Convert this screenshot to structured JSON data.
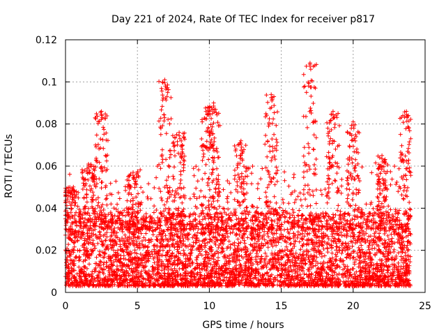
{
  "chart_data": {
    "type": "scatter",
    "title": "Day 221 of 2024, Rate Of TEC Index for receiver p817",
    "xlabel": "GPS time / hours",
    "ylabel": "ROTI / TECUs",
    "xlim": [
      0,
      25
    ],
    "ylim": [
      0,
      0.12
    ],
    "x_ticks": [
      0,
      5,
      10,
      15,
      20,
      25
    ],
    "y_ticks": [
      0,
      0.02,
      0.04,
      0.06,
      0.08,
      0.1,
      0.12
    ],
    "x_tick_labels": [
      "0",
      "5",
      "10",
      "15",
      "20",
      "25"
    ],
    "y_tick_labels": [
      "0",
      "0.02",
      "0.04",
      "0.06",
      "0.08",
      "0.1",
      "0.12"
    ],
    "grid": true,
    "marker": "+",
    "color": "#ff0000",
    "series": [
      {
        "name": "ROTI",
        "x_range": [
          0,
          24
        ],
        "typical_range": [
          0.003,
          0.03
        ],
        "notable_peaks": [
          {
            "x": 0.3,
            "y": 0.05
          },
          {
            "x": 1.6,
            "y": 0.061
          },
          {
            "x": 2.5,
            "y": 0.086
          },
          {
            "x": 4.7,
            "y": 0.057
          },
          {
            "x": 6.9,
            "y": 0.101
          },
          {
            "x": 7.9,
            "y": 0.076
          },
          {
            "x": 9.9,
            "y": 0.088
          },
          {
            "x": 10.3,
            "y": 0.09
          },
          {
            "x": 12.2,
            "y": 0.072
          },
          {
            "x": 14.3,
            "y": 0.094
          },
          {
            "x": 17.0,
            "y": 0.109
          },
          {
            "x": 18.6,
            "y": 0.086
          },
          {
            "x": 20.0,
            "y": 0.081
          },
          {
            "x": 22.0,
            "y": 0.065
          },
          {
            "x": 23.7,
            "y": 0.086
          }
        ]
      }
    ]
  }
}
